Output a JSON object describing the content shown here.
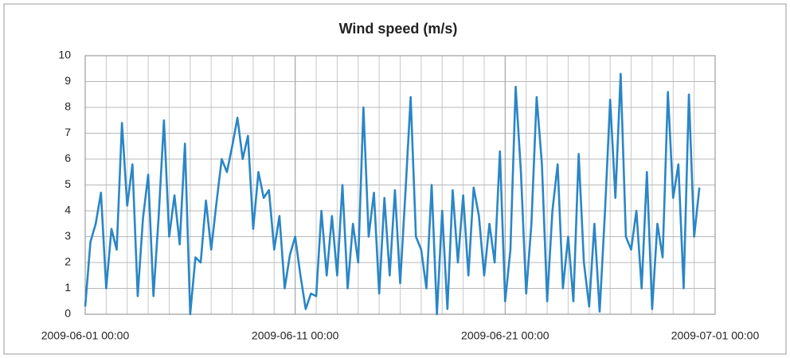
{
  "chart_data": {
    "type": "line",
    "title": "Wind speed (m/s)",
    "x": [
      "2009-06-01 00:00",
      "2009-06-01 06:00",
      "2009-06-01 12:00",
      "2009-06-01 18:00",
      "2009-06-02 00:00",
      "2009-06-02 06:00",
      "2009-06-02 12:00",
      "2009-06-02 18:00",
      "2009-06-03 00:00",
      "2009-06-03 06:00",
      "2009-06-03 12:00",
      "2009-06-03 18:00",
      "2009-06-04 00:00",
      "2009-06-04 06:00",
      "2009-06-04 12:00",
      "2009-06-04 18:00",
      "2009-06-05 00:00",
      "2009-06-05 06:00",
      "2009-06-05 12:00",
      "2009-06-05 18:00",
      "2009-06-06 00:00",
      "2009-06-06 06:00",
      "2009-06-06 12:00",
      "2009-06-06 18:00",
      "2009-06-07 00:00",
      "2009-06-07 06:00",
      "2009-06-07 12:00",
      "2009-06-07 18:00",
      "2009-06-08 00:00",
      "2009-06-08 06:00",
      "2009-06-08 12:00",
      "2009-06-08 18:00",
      "2009-06-09 00:00",
      "2009-06-09 06:00",
      "2009-06-09 12:00",
      "2009-06-09 18:00",
      "2009-06-10 00:00",
      "2009-06-10 06:00",
      "2009-06-10 12:00",
      "2009-06-10 18:00",
      "2009-06-11 00:00",
      "2009-06-11 06:00",
      "2009-06-11 12:00",
      "2009-06-11 18:00",
      "2009-06-12 00:00",
      "2009-06-12 06:00",
      "2009-06-12 12:00",
      "2009-06-12 18:00",
      "2009-06-13 00:00",
      "2009-06-13 06:00",
      "2009-06-13 12:00",
      "2009-06-13 18:00",
      "2009-06-14 00:00",
      "2009-06-14 06:00",
      "2009-06-14 12:00",
      "2009-06-14 18:00",
      "2009-06-15 00:00",
      "2009-06-15 06:00",
      "2009-06-15 12:00",
      "2009-06-15 18:00",
      "2009-06-16 00:00",
      "2009-06-16 06:00",
      "2009-06-16 12:00",
      "2009-06-16 18:00",
      "2009-06-17 00:00",
      "2009-06-17 06:00",
      "2009-06-17 12:00",
      "2009-06-17 18:00",
      "2009-06-18 00:00",
      "2009-06-18 06:00",
      "2009-06-18 12:00",
      "2009-06-18 18:00",
      "2009-06-19 00:00",
      "2009-06-19 06:00",
      "2009-06-19 12:00",
      "2009-06-19 18:00",
      "2009-06-20 00:00",
      "2009-06-20 06:00",
      "2009-06-20 12:00",
      "2009-06-20 18:00",
      "2009-06-21 00:00",
      "2009-06-21 06:00",
      "2009-06-21 12:00",
      "2009-06-21 18:00",
      "2009-06-22 00:00",
      "2009-06-22 06:00",
      "2009-06-22 12:00",
      "2009-06-22 18:00",
      "2009-06-23 00:00",
      "2009-06-23 06:00",
      "2009-06-23 12:00",
      "2009-06-23 18:00",
      "2009-06-24 00:00",
      "2009-06-24 06:00",
      "2009-06-24 12:00",
      "2009-06-24 18:00",
      "2009-06-25 00:00",
      "2009-06-25 06:00",
      "2009-06-25 12:00",
      "2009-06-25 18:00",
      "2009-06-26 00:00",
      "2009-06-26 06:00",
      "2009-06-26 12:00",
      "2009-06-26 18:00",
      "2009-06-27 00:00",
      "2009-06-27 06:00",
      "2009-06-27 12:00",
      "2009-06-27 18:00",
      "2009-06-28 00:00",
      "2009-06-28 06:00",
      "2009-06-28 12:00",
      "2009-06-28 18:00",
      "2009-06-29 00:00",
      "2009-06-29 06:00",
      "2009-06-29 12:00",
      "2009-06-29 18:00",
      "2009-06-30 00:00",
      "2009-06-30 06:00"
    ],
    "series": [
      {
        "name": "Wind speed",
        "color": "#2a86c6",
        "values": [
          0.3,
          2.8,
          3.5,
          4.7,
          1.0,
          3.3,
          2.5,
          7.4,
          4.2,
          5.8,
          0.7,
          3.7,
          5.4,
          0.7,
          3.8,
          7.5,
          3.0,
          4.6,
          2.7,
          6.6,
          0.0,
          2.2,
          2.0,
          4.4,
          2.5,
          4.3,
          6.0,
          5.5,
          6.5,
          7.6,
          6.0,
          6.9,
          3.3,
          5.5,
          4.5,
          4.8,
          2.5,
          3.8,
          1.0,
          2.3,
          3.0,
          1.5,
          0.2,
          0.8,
          0.7,
          4.0,
          1.5,
          3.8,
          1.5,
          5.0,
          1.0,
          3.5,
          2.0,
          8.0,
          3.0,
          4.7,
          0.8,
          4.5,
          1.5,
          4.8,
          1.2,
          4.7,
          8.4,
          3.0,
          2.5,
          1.0,
          5.0,
          0.0,
          4.0,
          0.2,
          4.8,
          2.0,
          4.6,
          1.5,
          4.9,
          3.8,
          1.5,
          3.5,
          2.0,
          6.3,
          0.5,
          2.5,
          8.8,
          5.5,
          0.8,
          3.5,
          8.4,
          5.8,
          0.5,
          4.0,
          5.8,
          1.0,
          3.0,
          0.5,
          6.2,
          2.0,
          0.3,
          3.5,
          0.1,
          3.9,
          8.3,
          4.5,
          9.3,
          3.0,
          2.5,
          4.0,
          1.0,
          5.5,
          0.2,
          3.5,
          2.2,
          8.6,
          4.5,
          5.8,
          1.0,
          8.5,
          3.0,
          4.9
        ]
      }
    ],
    "xlim": [
      "2009-06-01 00:00",
      "2009-07-01 00:00"
    ],
    "xticks": [
      "2009-06-01 00:00",
      "2009-06-11 00:00",
      "2009-06-21 00:00",
      "2009-07-01 00:00"
    ],
    "ylim": [
      0,
      10
    ],
    "yticks": [
      0,
      1,
      2,
      3,
      4,
      5,
      6,
      7,
      8,
      9,
      10
    ],
    "grid": true,
    "xgrid_step_days": 1
  }
}
